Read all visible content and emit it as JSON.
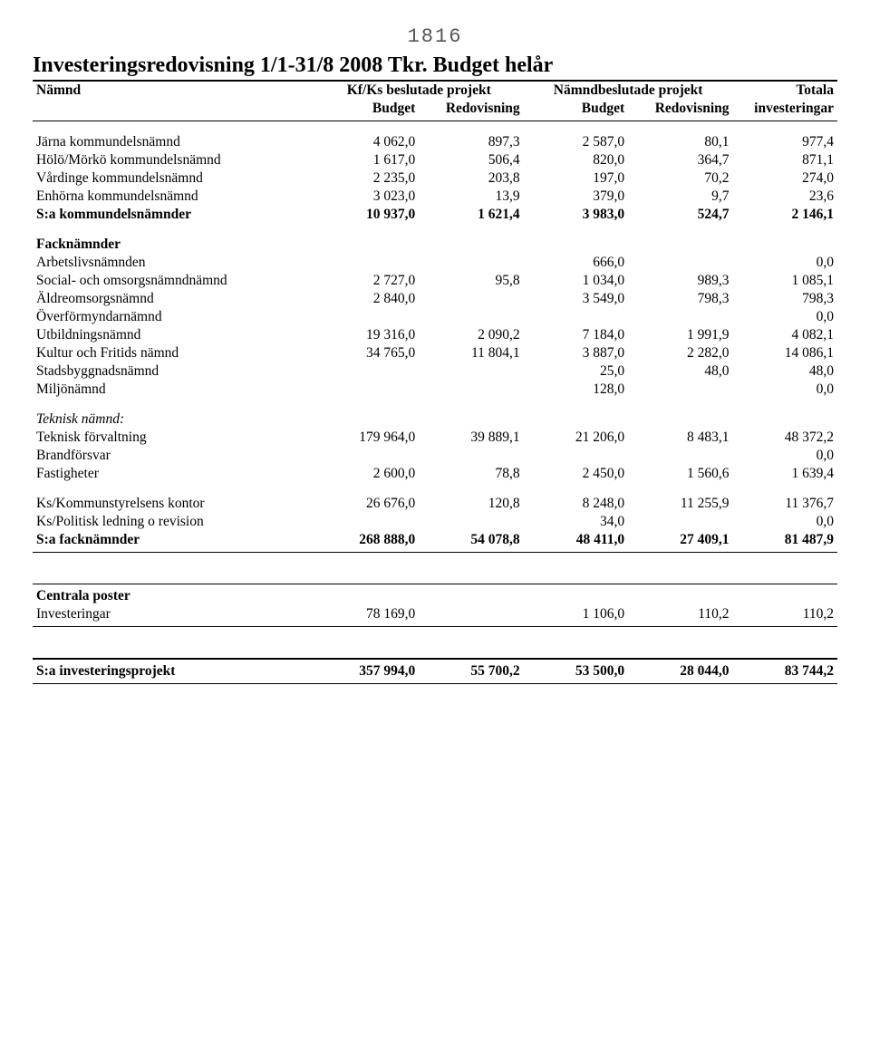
{
  "pageNumber": "1816",
  "title": "Investeringsredovisning 1/1-31/8 2008 Tkr.   Budget helår",
  "headers": {
    "namnd": "Nämnd",
    "group1": "Kf/Ks beslutade projekt",
    "group2": "Nämndbeslutade projekt",
    "totala": "Totala",
    "budget": "Budget",
    "redovisning": "Redovisning",
    "investeringar": "investeringar"
  },
  "rows": [
    {
      "label": "Järna kommundelsnämnd",
      "c": [
        "4 062,0",
        "897,3",
        "2 587,0",
        "80,1",
        "977,4"
      ],
      "style": "body-top"
    },
    {
      "label": "Hölö/Mörkö kommundelsnämnd",
      "c": [
        "1 617,0",
        "506,4",
        "820,0",
        "364,7",
        "871,1"
      ]
    },
    {
      "label": "Vårdinge kommundelsnämnd",
      "c": [
        "2 235,0",
        "203,8",
        "197,0",
        "70,2",
        "274,0"
      ]
    },
    {
      "label": "Enhörna kommundelsnämnd",
      "c": [
        "3 023,0",
        "13,9",
        "379,0",
        "9,7",
        "23,6"
      ]
    },
    {
      "label": "S:a kommundelsnämnder",
      "c": [
        "10 937,0",
        "1 621,4",
        "3 983,0",
        "524,7",
        "2 146,1"
      ],
      "style": "bold"
    },
    {
      "label": "Facknämnder",
      "c": [
        "",
        "",
        "",
        "",
        ""
      ],
      "style": "bold gap"
    },
    {
      "label": "Arbetslivsnämnden",
      "c": [
        "",
        "",
        "666,0",
        "",
        "0,0"
      ]
    },
    {
      "label": "Social- och omsorgsnämndnämnd",
      "c": [
        "2 727,0",
        "95,8",
        "1 034,0",
        "989,3",
        "1 085,1"
      ]
    },
    {
      "label": "Äldreomsorgsnämnd",
      "c": [
        "2 840,0",
        "",
        "3 549,0",
        "798,3",
        "798,3"
      ]
    },
    {
      "label": "Överförmyndarnämnd",
      "c": [
        "",
        "",
        "",
        "",
        "0,0"
      ]
    },
    {
      "label": "Utbildningsnämnd",
      "c": [
        "19 316,0",
        "2 090,2",
        "7 184,0",
        "1 991,9",
        "4 082,1"
      ]
    },
    {
      "label": "Kultur och Fritids nämnd",
      "c": [
        "34 765,0",
        "11 804,1",
        "3 887,0",
        "2 282,0",
        "14 086,1"
      ]
    },
    {
      "label": "Stadsbyggnadsnämnd",
      "c": [
        "",
        "",
        "25,0",
        "48,0",
        "48,0"
      ]
    },
    {
      "label": "Miljönämnd",
      "c": [
        "",
        "",
        "128,0",
        "",
        "0,0"
      ]
    },
    {
      "label": "Teknisk nämnd:",
      "c": [
        "",
        "",
        "",
        "",
        ""
      ],
      "style": "italic gap"
    },
    {
      "label": "Teknisk förvaltning",
      "c": [
        "179 964,0",
        "39 889,1",
        "21 206,0",
        "8 483,1",
        "48 372,2"
      ]
    },
    {
      "label": "Brandförsvar",
      "c": [
        "",
        "",
        "",
        "",
        "0,0"
      ]
    },
    {
      "label": "Fastigheter",
      "c": [
        "2 600,0",
        "78,8",
        "2 450,0",
        "1 560,6",
        "1 639,4"
      ]
    },
    {
      "label": "Ks/Kommunstyrelsens kontor",
      "c": [
        "26 676,0",
        "120,8",
        "8 248,0",
        "11 255,9",
        "11 376,7"
      ],
      "style": "gap"
    },
    {
      "label": "Ks/Politisk ledning o revision",
      "c": [
        "",
        "",
        "34,0",
        "",
        "0,0"
      ]
    },
    {
      "label": "S:a facknämnder",
      "c": [
        "268 888,0",
        "54 078,8",
        "48 411,0",
        "27 409,1",
        "81 487,9"
      ],
      "style": "bold rule-bot"
    },
    {
      "label": "",
      "c": [
        "",
        "",
        "",
        "",
        ""
      ],
      "style": "sep"
    },
    {
      "label": "Centrala poster",
      "c": [
        "",
        "",
        "",
        "",
        ""
      ],
      "style": "bold rule-top"
    },
    {
      "label": "Investeringar",
      "c": [
        "78 169,0",
        "",
        "1 106,0",
        "110,2",
        "110,2"
      ],
      "style": "rule-bot"
    },
    {
      "label": "",
      "c": [
        "",
        "",
        "",
        "",
        ""
      ],
      "style": "sep"
    },
    {
      "label": "S:a investeringsprojekt",
      "c": [
        "357 994,0",
        "55 700,2",
        "53 500,0",
        "28 044,0",
        "83 744,2"
      ],
      "style": "bold rule-top-heavy rule-bot"
    }
  ]
}
